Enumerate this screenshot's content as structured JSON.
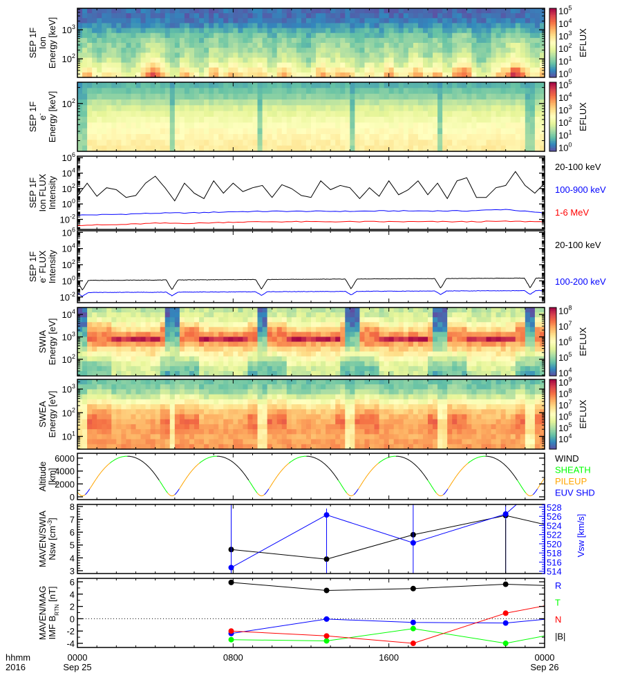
{
  "colormap": [
    "#5e4fa2",
    "#3288bd",
    "#66c2a5",
    "#abdda4",
    "#e6f598",
    "#ffffbf",
    "#fee08b",
    "#fdae61",
    "#f46d43",
    "#d53e4f",
    "#9e0142"
  ],
  "time_axis": {
    "label_line1": "hhmm",
    "label_line2": "2016",
    "range_hours": [
      0,
      24
    ],
    "ticks": [
      {
        "t": 0,
        "l1": "0000",
        "l2": "Sep 25"
      },
      {
        "t": 8,
        "l1": "0800",
        "l2": ""
      },
      {
        "t": 16,
        "l1": "1600",
        "l2": ""
      },
      {
        "t": 24,
        "l1": "0000",
        "l2": "Sep 26"
      }
    ]
  },
  "orbit": {
    "period_hours": 4.6,
    "first_periapsis_hour": 4.86,
    "periapsis_alt_km": 150,
    "apoapsis_alt_km": 6300
  },
  "chart_data": [
    {
      "type": "heatmap",
      "name": "sep-ion-spectrogram",
      "title": [
        [
          {
            "t": "SEP 1F"
          }
        ],
        [
          {
            "t": "Ion"
          }
        ],
        [
          {
            "t": "Energy [keV]"
          }
        ]
      ],
      "ylog": true,
      "ylim": [
        1.36,
        3.74
      ],
      "yticks": [
        {
          "v": 3,
          "b": "10",
          "e": "3"
        },
        {
          "v": 2,
          "b": "10",
          "e": "2"
        }
      ],
      "zlim_log": [
        -0.3,
        5.2
      ],
      "colorbar": {
        "label": "EFLUX",
        "ticks": [
          {
            "v": 5,
            "b": "10",
            "e": "5"
          },
          {
            "v": 4,
            "b": "10",
            "e": "4"
          },
          {
            "v": 3,
            "b": "10",
            "e": "3"
          },
          {
            "v": 2,
            "b": "10",
            "e": "2"
          },
          {
            "v": 1,
            "b": "10",
            "e": "1"
          },
          {
            "v": 0,
            "b": "10",
            "e": "0"
          }
        ]
      },
      "rows": 14,
      "base_log_eflux": [
        0,
        0,
        0.1,
        0.3,
        0.6,
        0.8,
        1.0,
        1.1,
        1.2,
        1.3,
        1.5,
        1.8,
        2.2,
        2.6
      ],
      "flux_gain": [
        0,
        0,
        0,
        0.1,
        0.1,
        0.2,
        0.2,
        0.3,
        0.3,
        0.4,
        0.5,
        0.6,
        0.8,
        0.9
      ],
      "driver": "SEP ion 20-100 keV flux"
    },
    {
      "type": "heatmap",
      "name": "sep-electron-spectrogram",
      "title": [
        [
          {
            "t": "SEP 1F"
          }
        ],
        [
          {
            "t": "e"
          },
          {
            "t": "-",
            "sup": true
          }
        ],
        [
          {
            "t": "Energy [keV]"
          }
        ]
      ],
      "ylog": true,
      "ylim": [
        1.1,
        2.4
      ],
      "yticks": [
        {
          "v": 2,
          "b": "10",
          "e": "2"
        }
      ],
      "zlim_log": [
        -0.3,
        5.2
      ],
      "colorbar": {
        "label": "EFLUX",
        "ticks": [
          {
            "v": 5,
            "b": "10",
            "e": "5"
          },
          {
            "v": 4,
            "b": "10",
            "e": "4"
          },
          {
            "v": 3,
            "b": "10",
            "e": "3"
          },
          {
            "v": 2,
            "b": "10",
            "e": "2"
          },
          {
            "v": 1,
            "b": "10",
            "e": "1"
          },
          {
            "v": 0,
            "b": "10",
            "e": "0"
          }
        ]
      },
      "rows": 12,
      "profile_log_eflux": [
        0.7,
        0.9,
        1.1,
        1.5,
        1.8,
        2.0,
        2.2,
        2.4,
        2.5,
        2.6,
        2.7,
        2.75
      ],
      "periapsis_profile_log_eflux": [
        0.5,
        0.6,
        0.7,
        0.8,
        0.9,
        1.0,
        1.0,
        1.1,
        1.1,
        1.2,
        1.2,
        1.2
      ],
      "dip_halfwidth_hours": 0.15
    },
    {
      "type": "line",
      "name": "sep-ion-flux",
      "title": [
        [
          {
            "t": "SEP 1F"
          }
        ],
        [
          {
            "t": "Ion FLUX"
          }
        ],
        [
          {
            "t": "Intensity"
          }
        ]
      ],
      "ylog": true,
      "ylim": [
        -3.3,
        6.2
      ],
      "yticks": [
        {
          "v": 6,
          "b": "10",
          "e": "6"
        },
        {
          "v": 4,
          "b": "10",
          "e": "4"
        },
        {
          "v": 2,
          "b": "10",
          "e": "2"
        },
        {
          "v": 0,
          "b": "10",
          "e": "0"
        },
        {
          "v": -2,
          "b": "10",
          "e": "-2"
        }
      ],
      "series": [
        {
          "name": "20-100 keV",
          "color": "#000000",
          "dt_hours": 0.5,
          "log_values": [
            1.0,
            2.7,
            1.0,
            2.1,
            1.85,
            0.85,
            1.1,
            2.7,
            3.6,
            2.1,
            0.4,
            2.7,
            1.4,
            0.7,
            3.0,
            1.4,
            2.7,
            1.6,
            2.1,
            2.4,
            0.85,
            2.5,
            2.0,
            1.1,
            0.85,
            3.0,
            1.85,
            2.4,
            2.1,
            0.7,
            2.1,
            1.0,
            3.0,
            1.2,
            1.85,
            3.0,
            1.2,
            2.7,
            0.7,
            3.0,
            3.4,
            0.85,
            0.85,
            2.1,
            2.4,
            4.2,
            2.4,
            1.4,
            2.7
          ]
        },
        {
          "name": "100-900 keV",
          "color": "#0000ff",
          "dt_hours": 2,
          "log_values": [
            -1.45,
            -1.35,
            -1.2,
            -1.15,
            -1.0,
            -0.95,
            -0.95,
            -0.95,
            -0.9,
            -0.9,
            -0.9,
            -0.7,
            -1.2
          ]
        },
        {
          "name": "1-6 MeV",
          "color": "#ff0000",
          "dt_hours": 2,
          "log_values": [
            -2.75,
            -2.7,
            -2.5,
            -2.5,
            -2.35,
            -2.3,
            -2.3,
            -2.3,
            -2.3,
            -2.3,
            -2.3,
            -2.25,
            -2.3
          ]
        }
      ],
      "legend": [
        {
          "text": "20-100 keV",
          "color": "#000000"
        },
        {
          "text": "100-900 keV",
          "color": "#0000ff"
        },
        {
          "text": "1-6 MeV",
          "color": "#ff0000"
        }
      ]
    },
    {
      "type": "line",
      "name": "sep-electron-flux",
      "title": [
        [
          {
            "t": "SEP 1F"
          }
        ],
        [
          {
            "t": "e"
          },
          {
            "t": "-",
            "sup": true
          },
          {
            "t": " FLUX"
          }
        ],
        [
          {
            "t": "Intensity"
          }
        ]
      ],
      "ylog": true,
      "ylim": [
        -2.7,
        6.2
      ],
      "yticks": [
        {
          "v": 6,
          "b": "10",
          "e": "6"
        },
        {
          "v": 4,
          "b": "10",
          "e": "4"
        },
        {
          "v": 2,
          "b": "10",
          "e": "2"
        },
        {
          "v": 0,
          "b": "10",
          "e": "0"
        },
        {
          "v": -2,
          "b": "10",
          "e": "-2"
        }
      ],
      "series": [
        {
          "name": "20-100 keV",
          "color": "#000000",
          "log_start": 0.05,
          "log_end": 0.35,
          "periapsis_dip": 1.2
        },
        {
          "name": "100-200 keV",
          "color": "#0000ff",
          "log_start": -1.45,
          "log_end": -1.2,
          "periapsis_dip": 0.45
        }
      ],
      "legend": [
        {
          "text": "20-100 keV",
          "color": "#000000"
        },
        {
          "text": "100-200 keV",
          "color": "#0000ff"
        }
      ]
    },
    {
      "type": "heatmap",
      "name": "swia-spectrogram",
      "title": [
        [
          {
            "t": "SWIA"
          }
        ],
        [
          {
            "t": "Energy [eV]"
          }
        ]
      ],
      "ylog": true,
      "ylim": [
        1.26,
        4.31
      ],
      "yticks": [
        {
          "v": 4,
          "b": "10",
          "e": "4"
        },
        {
          "v": 3,
          "b": "10",
          "e": "3"
        },
        {
          "v": 2,
          "b": "10",
          "e": "2"
        }
      ],
      "zlim_log": [
        3.8,
        8.2
      ],
      "colorbar": {
        "label": "EFLUX",
        "ticks": [
          {
            "v": 8,
            "b": "10",
            "e": "8"
          },
          {
            "v": 7,
            "b": "10",
            "e": "7"
          },
          {
            "v": 6,
            "b": "10",
            "e": "6"
          },
          {
            "v": 5,
            "b": "10",
            "e": "5"
          },
          {
            "v": 4,
            "b": "10",
            "e": "4"
          }
        ]
      },
      "rows": 14,
      "states": {
        "wind": [
          5.3,
          5.4,
          5.6,
          6.0,
          6.4,
          7.0,
          7.9,
          6.9,
          6.5,
          6.3,
          6.0,
          5.7,
          5.5,
          5.4
        ],
        "sheath": [
          5.3,
          5.5,
          5.9,
          6.5,
          7.0,
          7.2,
          7.2,
          6.9,
          6.4,
          5.9,
          5.4,
          5.0,
          4.8,
          4.7
        ],
        "periapsis": [
          4.0,
          4.0,
          4.1,
          4.2,
          4.4,
          4.6,
          4.8,
          5.0,
          5.3,
          5.6,
          5.3,
          5.0,
          4.8,
          4.6
        ]
      },
      "phase_segments": [
        {
          "from": 0,
          "to": 0.07,
          "state": "periapsis"
        },
        {
          "from": 0.07,
          "to": 0.3,
          "state": "sheath"
        },
        {
          "from": 0.3,
          "to": 0.86,
          "state": "wind"
        },
        {
          "from": 0.86,
          "to": 0.93,
          "state": "sheath"
        },
        {
          "from": 0.93,
          "to": 1,
          "state": "periapsis"
        }
      ]
    },
    {
      "type": "heatmap",
      "name": "swea-spectrogram",
      "title": [
        [
          {
            "t": "SWEA"
          }
        ],
        [
          {
            "t": "Energy [eV]"
          }
        ]
      ],
      "ylog": true,
      "ylim": [
        0.46,
        3.41
      ],
      "yticks": [
        {
          "v": 3,
          "b": "10",
          "e": "3"
        },
        {
          "v": 2,
          "b": "10",
          "e": "2"
        },
        {
          "v": 1,
          "b": "10",
          "e": "1"
        }
      ],
      "zlim_log": [
        3.1,
        9.25
      ],
      "colorbar": {
        "label": "EFLUX",
        "ticks": [
          {
            "v": 9,
            "b": "10",
            "e": "9"
          },
          {
            "v": 8,
            "b": "10",
            "e": "8"
          },
          {
            "v": 7,
            "b": "10",
            "e": "7"
          },
          {
            "v": 6,
            "b": "10",
            "e": "6"
          },
          {
            "v": 5,
            "b": "10",
            "e": "5"
          },
          {
            "v": 4,
            "b": "10",
            "e": "4"
          }
        ]
      },
      "rows": 14,
      "states": {
        "wind": [
          4.4,
          4.5,
          4.8,
          5.3,
          6.0,
          6.6,
          7.0,
          7.2,
          7.4,
          7.5,
          7.5,
          7.4,
          7.5,
          7.6
        ],
        "sheath": [
          4.5,
          4.8,
          5.2,
          5.8,
          6.5,
          7.0,
          7.4,
          7.8,
          8.0,
          7.9,
          7.7,
          7.5,
          7.5,
          7.6
        ],
        "periapsis": [
          4.3,
          4.4,
          4.7,
          5.2,
          5.8,
          6.1,
          6.3,
          6.4,
          6.6,
          6.7,
          6.6,
          6.5,
          6.4,
          6.4
        ]
      },
      "phase_segments": [
        {
          "from": 0,
          "to": 0.05,
          "state": "periapsis"
        },
        {
          "from": 0.05,
          "to": 0.3,
          "state": "sheath"
        },
        {
          "from": 0.3,
          "to": 0.85,
          "state": "wind"
        },
        {
          "from": 0.85,
          "to": 0.95,
          "state": "sheath"
        },
        {
          "from": 0.95,
          "to": 1,
          "state": "periapsis"
        }
      ]
    },
    {
      "type": "line",
      "name": "altitude",
      "title": [
        [
          {
            "t": "Altitude"
          }
        ],
        [
          {
            "t": "[km]"
          }
        ]
      ],
      "ylog": false,
      "ylim": [
        -430,
        6750
      ],
      "yticks": [
        {
          "v": 6000,
          "l": "6000"
        },
        {
          "v": 4000,
          "l": "4000"
        },
        {
          "v": 2000,
          "l": "2000"
        },
        {
          "v": 0,
          "l": "0"
        }
      ],
      "region_segments": [
        {
          "from": 0,
          "to": 0.03,
          "region": 2
        },
        {
          "from": 0.03,
          "to": 0.08,
          "region": 3
        },
        {
          "from": 0.08,
          "to": 0.3,
          "region": 2
        },
        {
          "from": 0.3,
          "to": 0.5,
          "region": 1
        },
        {
          "from": 0.5,
          "to": 0.85,
          "region": 0
        },
        {
          "from": 0.85,
          "to": 0.95,
          "region": 1
        },
        {
          "from": 0.95,
          "to": 1,
          "region": 2
        }
      ],
      "legend": [
        {
          "text": "WIND",
          "color": "#000000"
        },
        {
          "text": "SHEATH",
          "color": "#00ff00"
        },
        {
          "text": "PILEUP",
          "color": "#ffa500"
        },
        {
          "text": "EUV SHD",
          "color": "#0000ff"
        }
      ]
    },
    {
      "type": "line",
      "name": "solar-wind-density-speed",
      "title": [
        [
          {
            "t": "MAVEN/SWIA"
          }
        ],
        [
          {
            "t": "Nsw [cm"
          },
          {
            "t": "-3",
            "sup": true
          },
          {
            "t": "]"
          }
        ]
      ],
      "ylog": false,
      "ylim": [
        2.78,
        8.16
      ],
      "y2lim": [
        513.5,
        528.6
      ],
      "yticks": [
        {
          "v": 8,
          "l": "8"
        },
        {
          "v": 7,
          "l": "7"
        },
        {
          "v": 6,
          "l": "6"
        },
        {
          "v": 5,
          "l": "5"
        },
        {
          "v": 4,
          "l": "4"
        },
        {
          "v": 3,
          "l": "3"
        }
      ],
      "y2ticks": [
        {
          "v": 528,
          "l": "528"
        },
        {
          "v": 526,
          "l": "526"
        },
        {
          "v": 524,
          "l": "524"
        },
        {
          "v": 522,
          "l": "522"
        },
        {
          "v": 520,
          "l": "520"
        },
        {
          "v": 518,
          "l": "518"
        },
        {
          "v": 516,
          "l": "516"
        },
        {
          "v": 514,
          "l": "514"
        }
      ],
      "y2label": "Vsw [km/s]",
      "series": [
        {
          "name": "Nsw",
          "color": "#000000",
          "t": [
            7.9,
            12.8,
            17.25,
            22.0,
            24
          ],
          "values": [
            4.65,
            3.9,
            5.8,
            7.3,
            6.6
          ],
          "markers": 4
        },
        {
          "name": "Vsw",
          "color": "#0000ff",
          "axis": "right",
          "t": [
            7.9,
            12.8,
            17.25,
            22.0,
            22.8
          ],
          "values": [
            514.8,
            526.3,
            520.2,
            526.5,
            529.5
          ],
          "markers": 4
        }
      ]
    },
    {
      "type": "line",
      "name": "imf-rtn",
      "title": [
        [
          {
            "t": "MAVEN/MAG"
          }
        ],
        [
          {
            "t": "IMF B"
          },
          {
            "t": "RTN",
            "sub": true
          },
          {
            "t": " [nT]"
          }
        ]
      ],
      "ylog": false,
      "ylim": [
        -4.67,
        6.56
      ],
      "yticks": [
        {
          "v": 6,
          "l": "6"
        },
        {
          "v": 4,
          "l": "4"
        },
        {
          "v": 2,
          "l": "2"
        },
        {
          "v": 0,
          "l": "0"
        },
        {
          "v": -2,
          "l": "-2"
        },
        {
          "v": -4,
          "l": "-4"
        }
      ],
      "series": [
        {
          "name": "|B|",
          "color": "#000000",
          "t": [
            7.9,
            12.8,
            17.25,
            22.0,
            24
          ],
          "values": [
            5.9,
            4.6,
            4.9,
            5.6,
            5.4
          ],
          "markers": 4
        },
        {
          "name": "R",
          "color": "#0000ff",
          "t": [
            7.9,
            12.8,
            17.25,
            22.0,
            24
          ],
          "values": [
            -2.4,
            -0.05,
            -0.6,
            -0.7,
            -0.1
          ],
          "markers": 4
        },
        {
          "name": "T",
          "color": "#00ff00",
          "t": [
            7.9,
            12.8,
            17.25,
            22.0,
            24
          ],
          "values": [
            -3.4,
            -3.6,
            -1.6,
            -4.0,
            -2.8
          ],
          "markers": 4
        },
        {
          "name": "N",
          "color": "#ff0000",
          "t": [
            7.9,
            12.8,
            17.25,
            22.0,
            24
          ],
          "values": [
            -2.0,
            -2.8,
            -4.0,
            0.9,
            2.1
          ],
          "markers": 4
        }
      ],
      "legend": [
        {
          "text": "R",
          "color": "#0000ff"
        },
        {
          "text": "T",
          "color": "#00ff00"
        },
        {
          "text": "N",
          "color": "#ff0000"
        },
        {
          "text": "|B|",
          "color": "#000000"
        }
      ]
    }
  ]
}
